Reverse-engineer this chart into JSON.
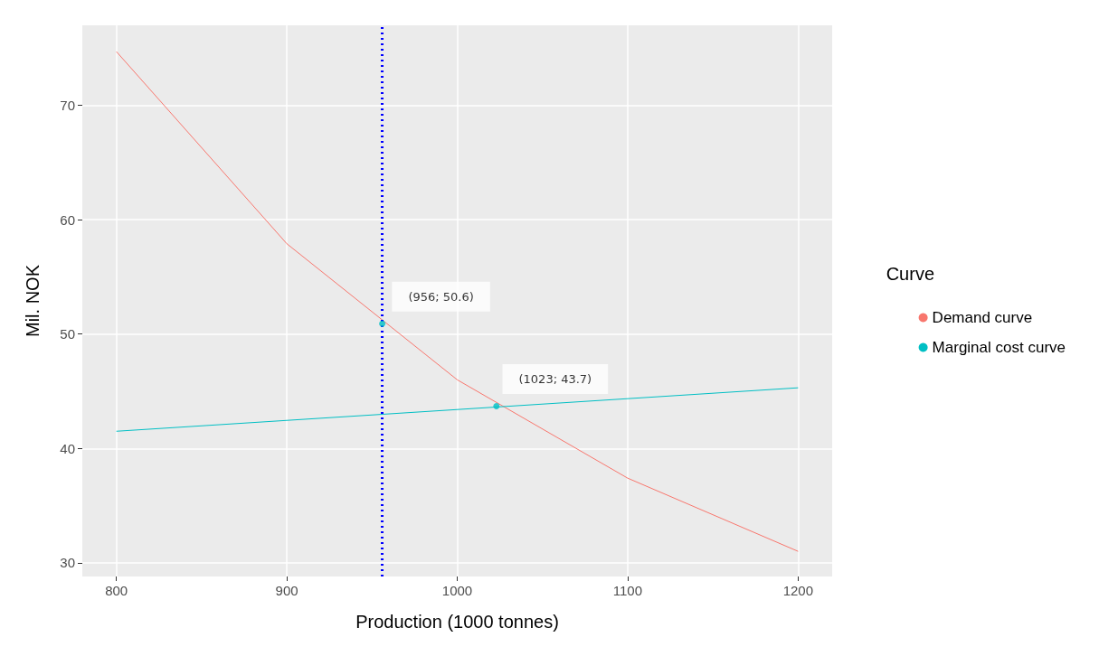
{
  "chart_data": {
    "type": "line",
    "xlabel": "Production (1000 tonnes)",
    "ylabel": "Mil. NOK",
    "legend_title": "Curve",
    "legend": "right",
    "xlim": [
      780,
      1220
    ],
    "xticks": [
      800,
      900,
      1000,
      1100,
      1200
    ],
    "ylim": [
      28.8,
      77
    ],
    "yticks": [
      30,
      40,
      50,
      60,
      70
    ],
    "grid": true,
    "series": [
      {
        "name": "Demand curve",
        "color": "#f8766d",
        "x": [
          800,
          900,
          1000,
          1100,
          1200
        ],
        "values": [
          74.7,
          57.9,
          46.0,
          37.4,
          31.0
        ]
      },
      {
        "name": "Marginal cost curve",
        "color": "#00bfc4",
        "x": [
          800,
          1200
        ],
        "values": [
          41.5,
          45.3
        ]
      },
      {
        "type": "scatter",
        "color": "#00bfc4",
        "x": [
          956,
          1023
        ],
        "values": [
          50.9,
          43.7
        ]
      }
    ],
    "ref_lines": [
      {
        "axis": "x",
        "value": 956,
        "color": "#0000ff",
        "line_style": "dotted"
      }
    ],
    "annotations": [
      {
        "text": "(956; 50.6)",
        "x": 956,
        "y": 50.9
      },
      {
        "text": "(1023; 43.7)",
        "x": 1023,
        "y": 43.7
      }
    ]
  }
}
